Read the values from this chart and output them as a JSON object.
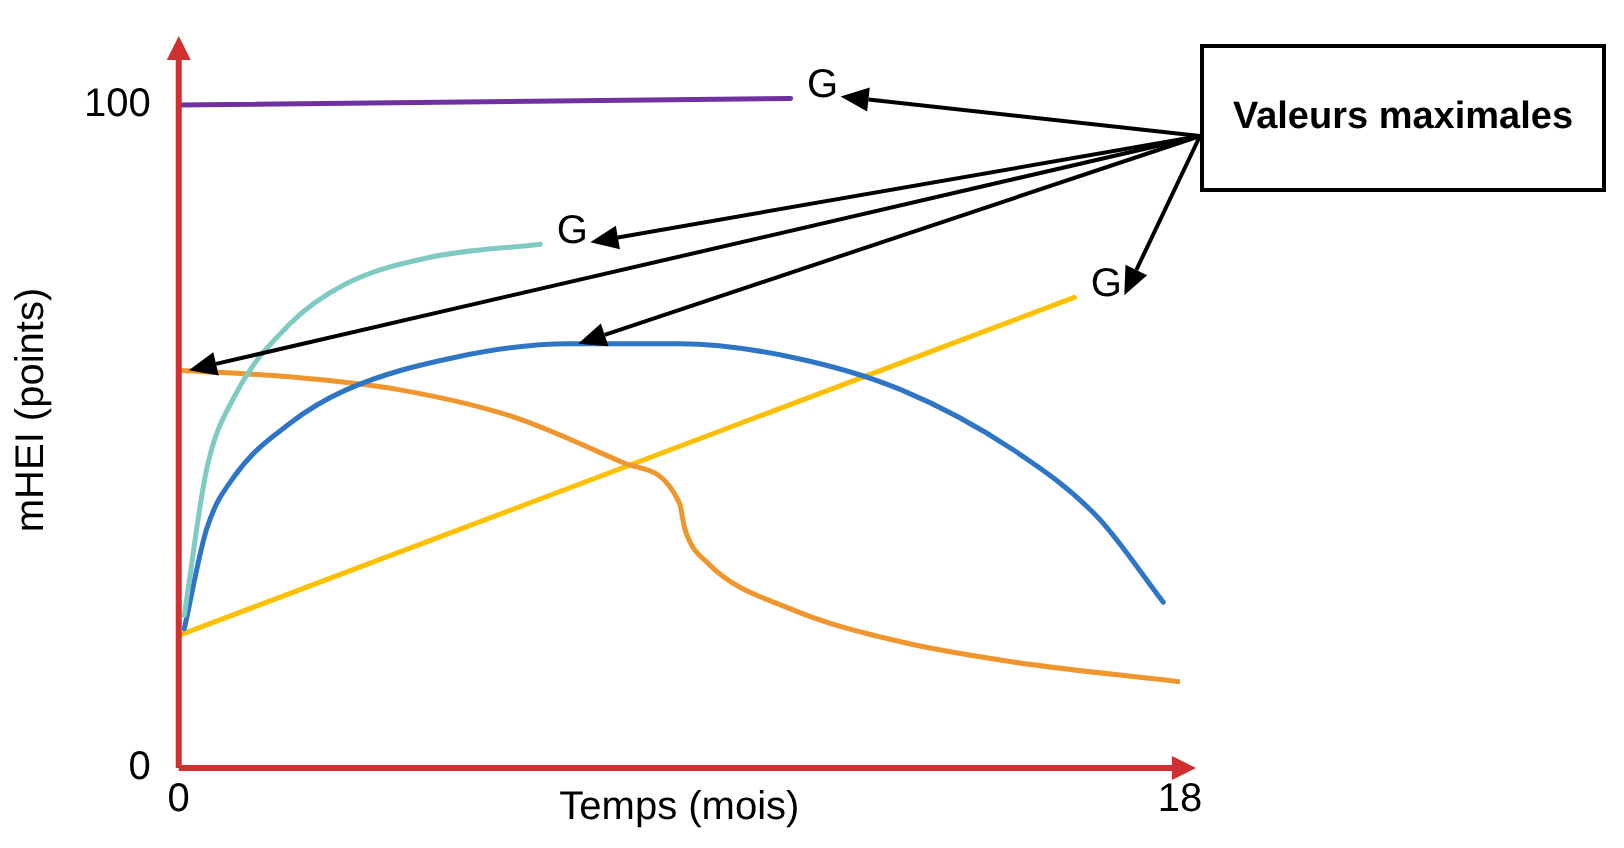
{
  "chart_data": {
    "type": "line",
    "xlabel": "Temps (mois)",
    "ylabel": "mHEI (points)",
    "xlim": [
      0,
      18
    ],
    "xticks": [
      0,
      18
    ],
    "ylim": [
      0,
      108
    ],
    "yticks": [
      0,
      100
    ],
    "grid": false,
    "legend": false,
    "marker": "none",
    "line_style": "solid",
    "series": [
      {
        "color": "#7030a0",
        "x": [
          0,
          11
        ],
        "values": [
          100,
          101
        ]
      },
      {
        "color": "#7fcac3",
        "x": [
          0.1,
          0.5,
          1,
          2,
          3,
          4.5,
          6.5
        ],
        "values": [
          23,
          45,
          56,
          67,
          73,
          77,
          79
        ]
      },
      {
        "color": "#2e75c6",
        "x": [
          0.1,
          0.5,
          1,
          2,
          3,
          5,
          7,
          9,
          11,
          13,
          15,
          16.5,
          17.7
        ],
        "values": [
          21,
          36,
          44,
          52,
          57,
          62,
          64,
          64,
          62,
          57,
          48,
          38,
          25
        ]
      },
      {
        "color": "#f0962e",
        "x": [
          0,
          2,
          4,
          6,
          8,
          9,
          9.1,
          9.5,
          11,
          13,
          15,
          18
        ],
        "values": [
          60,
          59,
          57,
          53,
          46,
          40,
          36,
          31,
          24,
          19,
          16,
          13
        ]
      },
      {
        "color": "#ffc000",
        "x": [
          0,
          16.1
        ],
        "values": [
          20,
          71
        ]
      }
    ],
    "annotations": [
      {
        "text": "G",
        "x": 11,
        "y": 101
      },
      {
        "text": "G",
        "x": 6.5,
        "y": 79
      },
      {
        "text": "G",
        "x": 16.1,
        "y": 71
      },
      "Valeurs maximales"
    ]
  }
}
